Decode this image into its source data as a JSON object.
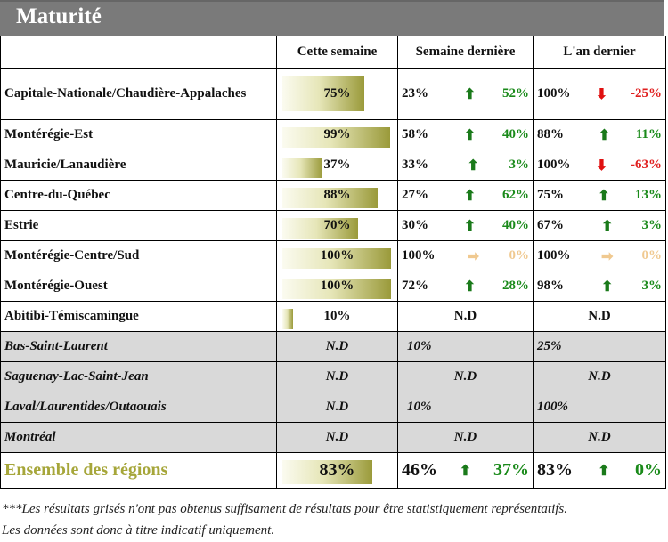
{
  "title": "Maturité",
  "headers": [
    "Cette semaine",
    "Semaine dernière",
    "L'an dernier"
  ],
  "rows": [
    {
      "region": "Capitale-Nationale/Chaudière-Appalaches",
      "this": "75%",
      "fill": 0.75,
      "lw_pct": "23%",
      "lw_dir": "up",
      "lw_chg": "52%",
      "ly_pct": "100%",
      "ly_dir": "down",
      "ly_chg": "-25%"
    },
    {
      "region": "Montérégie-Est",
      "this": "99%",
      "fill": 0.99,
      "lw_pct": "58%",
      "lw_dir": "up",
      "lw_chg": "40%",
      "ly_pct": "88%",
      "ly_dir": "up",
      "ly_chg": "11%"
    },
    {
      "region": "Mauricie/Lanaudière",
      "this": "37%",
      "fill": 0.37,
      "lw_pct": "33%",
      "lw_dir": "up",
      "lw_chg": "3%",
      "ly_pct": "100%",
      "ly_dir": "down",
      "ly_chg": "-63%"
    },
    {
      "region": "Centre-du-Québec",
      "this": "88%",
      "fill": 0.88,
      "lw_pct": "27%",
      "lw_dir": "up",
      "lw_chg": "62%",
      "ly_pct": "75%",
      "ly_dir": "up",
      "ly_chg": "13%"
    },
    {
      "region": "Estrie",
      "this": "70%",
      "fill": 0.7,
      "lw_pct": "30%",
      "lw_dir": "up",
      "lw_chg": "40%",
      "ly_pct": "67%",
      "ly_dir": "up",
      "ly_chg": "3%"
    },
    {
      "region": "Montérégie-Centre/Sud",
      "this": "100%",
      "fill": 1.0,
      "lw_pct": "100%",
      "lw_dir": "flat",
      "lw_chg": "0%",
      "ly_pct": "100%",
      "ly_dir": "flat",
      "ly_chg": "0%"
    },
    {
      "region": "Montérégie-Ouest",
      "this": "100%",
      "fill": 1.0,
      "lw_pct": "72%",
      "lw_dir": "up",
      "lw_chg": "28%",
      "ly_pct": "98%",
      "ly_dir": "up",
      "ly_chg": "3%"
    },
    {
      "region": "Abitibi-Témiscamingue",
      "this": "10%",
      "fill": 0.1,
      "lw_nd": "N.D",
      "ly_nd": "N.D"
    }
  ],
  "grey_rows": [
    {
      "region": "Bas-Saint-Laurent",
      "this": "N.D",
      "lw": "10%",
      "ly": "25%",
      "align": "left"
    },
    {
      "region": "Saguenay-Lac-Saint-Jean",
      "this": "N.D",
      "lw": "N.D",
      "ly": "N.D",
      "align": "center"
    },
    {
      "region": "Laval/Laurentides/Outaouais",
      "this": "N.D",
      "lw": "10%",
      "ly": "100%",
      "align": "left"
    },
    {
      "region": "Montréal",
      "this": "N.D",
      "lw": "N.D",
      "ly": "N.D",
      "align": "center"
    }
  ],
  "total": {
    "region": "Ensemble des régions",
    "this": "83%",
    "fill": 0.83,
    "lw_pct": "46%",
    "lw_dir": "up",
    "lw_chg": "37%",
    "ly_pct": "83%",
    "ly_dir": "up",
    "ly_chg": "0%"
  },
  "footnote_1": "***Les résultats grisés n'ont pas obtenus suffisament de résultats pour être statistiquement représentatifs.",
  "footnote_2": "Les données sont donc à titre indicatif uniquement.",
  "colors": {
    "title_bg": "#7a7a7a",
    "up": "#1a7a1a",
    "down": "#e01010",
    "flat": "#f0c990",
    "grey_row": "#d9d9d9",
    "bar_dark": "#9a9a3a"
  }
}
